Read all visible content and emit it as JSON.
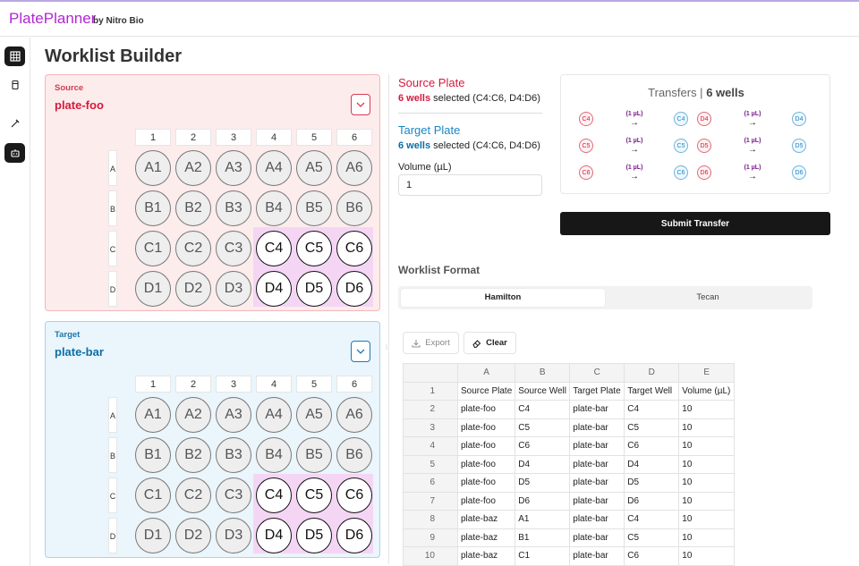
{
  "app": {
    "name": "PlatePlanner",
    "by": "by Nitro Bio"
  },
  "page": {
    "title": "Worklist Builder"
  },
  "source_card": {
    "kind": "Source",
    "plate_name": "plate-foo"
  },
  "target_card": {
    "kind": "Target",
    "plate_name": "plate-bar"
  },
  "plate_grid": {
    "columns": [
      "1",
      "2",
      "3",
      "4",
      "5",
      "6"
    ],
    "rows": [
      "A",
      "B",
      "C",
      "D"
    ],
    "wells": [
      [
        "A1",
        "A2",
        "A3",
        "A4",
        "A5",
        "A6"
      ],
      [
        "B1",
        "B2",
        "B3",
        "B4",
        "B5",
        "B6"
      ],
      [
        "C1",
        "C2",
        "C3",
        "C4",
        "C5",
        "C6"
      ],
      [
        "D1",
        "D2",
        "D3",
        "D4",
        "D5",
        "D6"
      ]
    ],
    "selected": [
      "C4",
      "C5",
      "C6",
      "D4",
      "D5",
      "D6"
    ]
  },
  "source_panel": {
    "label": "Source Plate",
    "count": "6 wells",
    "detail": "selected (C4:C6, D4:D6)"
  },
  "target_panel": {
    "label": "Target Plate",
    "count": "6 wells",
    "detail": "selected (C4:C6, D4:D6)"
  },
  "volume": {
    "label": "Volume (µL)",
    "value": "1"
  },
  "transfers": {
    "title_prefix": "Transfers |",
    "title_count": "6 wells",
    "items": [
      {
        "from": "C4",
        "vol": "(1 µL)",
        "arrow": "→",
        "to": "C4"
      },
      {
        "from": "C5",
        "vol": "(1 µL)",
        "arrow": "→",
        "to": "C5"
      },
      {
        "from": "C6",
        "vol": "(1 µL)",
        "arrow": "→",
        "to": "C6"
      },
      {
        "from": "D4",
        "vol": "(1 µL)",
        "arrow": "→",
        "to": "D4"
      },
      {
        "from": "D5",
        "vol": "(1 µL)",
        "arrow": "→",
        "to": "D5"
      },
      {
        "from": "D6",
        "vol": "(1 µL)",
        "arrow": "→",
        "to": "D6"
      }
    ]
  },
  "submit_label": "Submit Transfer",
  "worklist": {
    "title": "Worklist Format",
    "formats": [
      "Hamilton",
      "Tecan"
    ],
    "active_format": "Hamilton",
    "export_label": "Export",
    "clear_label": "Clear",
    "col_letters": [
      "A",
      "B",
      "C",
      "D",
      "E"
    ],
    "rows": [
      [
        "1",
        "Source Plate",
        "Source Well",
        "Target Plate",
        "Target Well",
        "Volume (µL)"
      ],
      [
        "2",
        "plate-foo",
        "C4",
        "plate-bar",
        "C4",
        "10"
      ],
      [
        "3",
        "plate-foo",
        "C5",
        "plate-bar",
        "C5",
        "10"
      ],
      [
        "4",
        "plate-foo",
        "C6",
        "plate-bar",
        "C6",
        "10"
      ],
      [
        "5",
        "plate-foo",
        "D4",
        "plate-bar",
        "D4",
        "10"
      ],
      [
        "6",
        "plate-foo",
        "D5",
        "plate-bar",
        "D5",
        "10"
      ],
      [
        "7",
        "plate-foo",
        "D6",
        "plate-bar",
        "D6",
        "10"
      ],
      [
        "8",
        "plate-baz",
        "A1",
        "plate-bar",
        "C4",
        "10"
      ],
      [
        "9",
        "plate-baz",
        "B1",
        "plate-bar",
        "C5",
        "10"
      ],
      [
        "10",
        "plate-baz",
        "C1",
        "plate-bar",
        "C6",
        "10"
      ]
    ]
  },
  "sidebar": {
    "icons": [
      "grid-icon",
      "plate-icon",
      "pipette-icon",
      "robot-icon"
    ]
  }
}
